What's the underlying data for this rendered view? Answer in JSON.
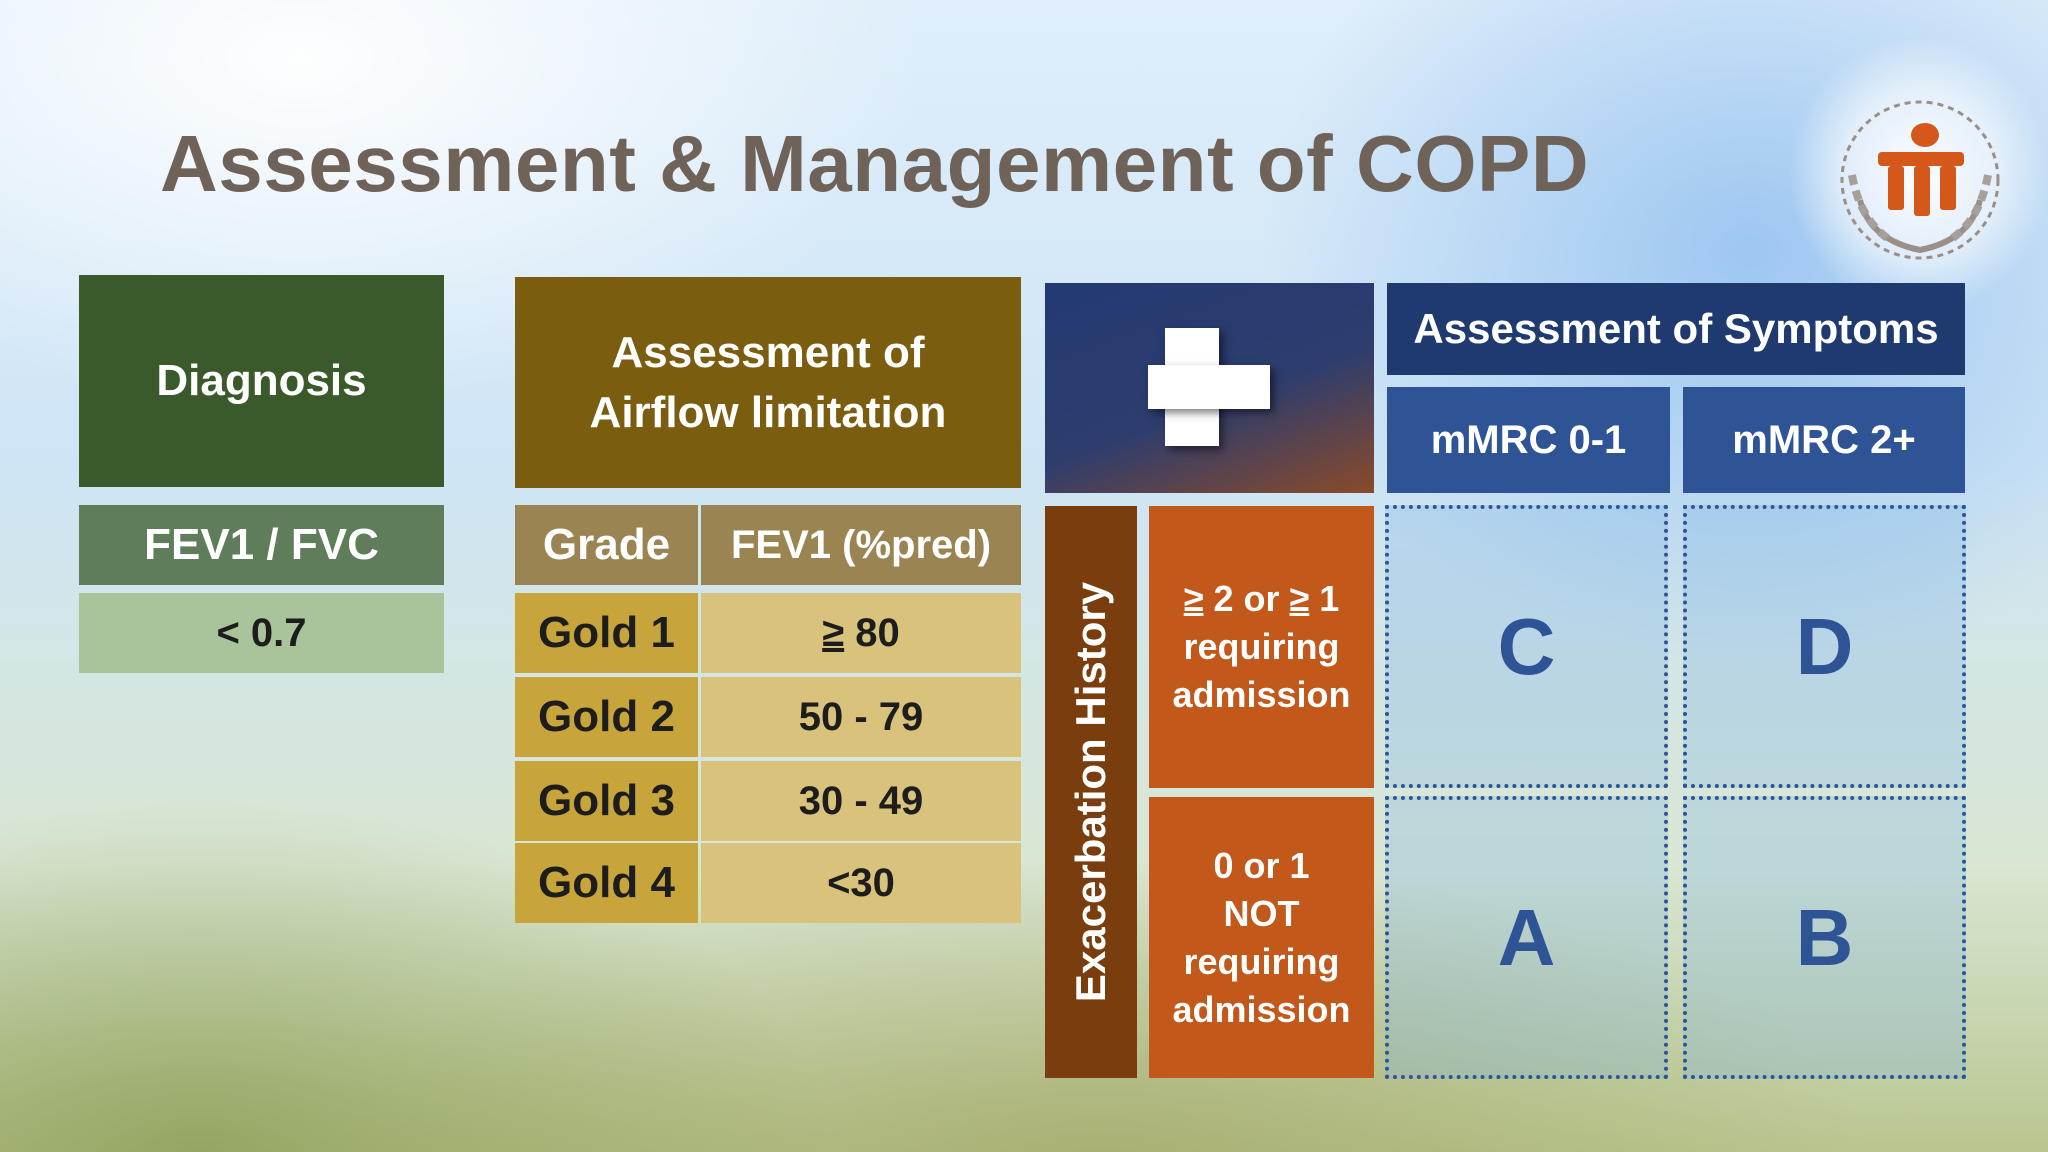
{
  "title": "Assessment & Management of COPD",
  "diagnosis": {
    "header": "Diagnosis",
    "fev_label": "FEV1 / FVC",
    "fev_value": "< 0.7"
  },
  "airflow": {
    "header_line1": "Assessment of",
    "header_line2": "Airflow limitation",
    "col_grade": "Grade",
    "col_fev": "FEV1 (%pred)",
    "rows": [
      {
        "grade": "Gold 1",
        "fev_sym": "≥",
        "fev": " 80"
      },
      {
        "grade": "Gold 2",
        "fev": "50 - 79"
      },
      {
        "grade": "Gold 3",
        "fev": "30 - 49"
      },
      {
        "grade": "Gold 4",
        "fev": "<30"
      }
    ]
  },
  "plus_icon": "plus-icon",
  "symptoms": {
    "header": "Assessment of Symptoms",
    "col_low": "mMRC 0-1",
    "col_high": "mMRC 2+"
  },
  "exacerbation": {
    "label": "Exacerbation History",
    "high_sym1": "≥",
    "high_mid": " 2 or ",
    "high_sym2": "≥",
    "high_end": " 1",
    "high_line2": "requiring",
    "high_line3": "admission",
    "low_line1": "0 or 1",
    "low_line2": "NOT",
    "low_line3": "requiring",
    "low_line4": "admission"
  },
  "groups": {
    "c": "C",
    "d": "D",
    "a": "A",
    "b": "B"
  },
  "colors": {
    "title": "#6f6259",
    "diagnosis": "#3b5a2b",
    "airflow": "#7a5d0f",
    "symptoms": "#1f3a6e",
    "exacerbation": "#c2581a"
  }
}
